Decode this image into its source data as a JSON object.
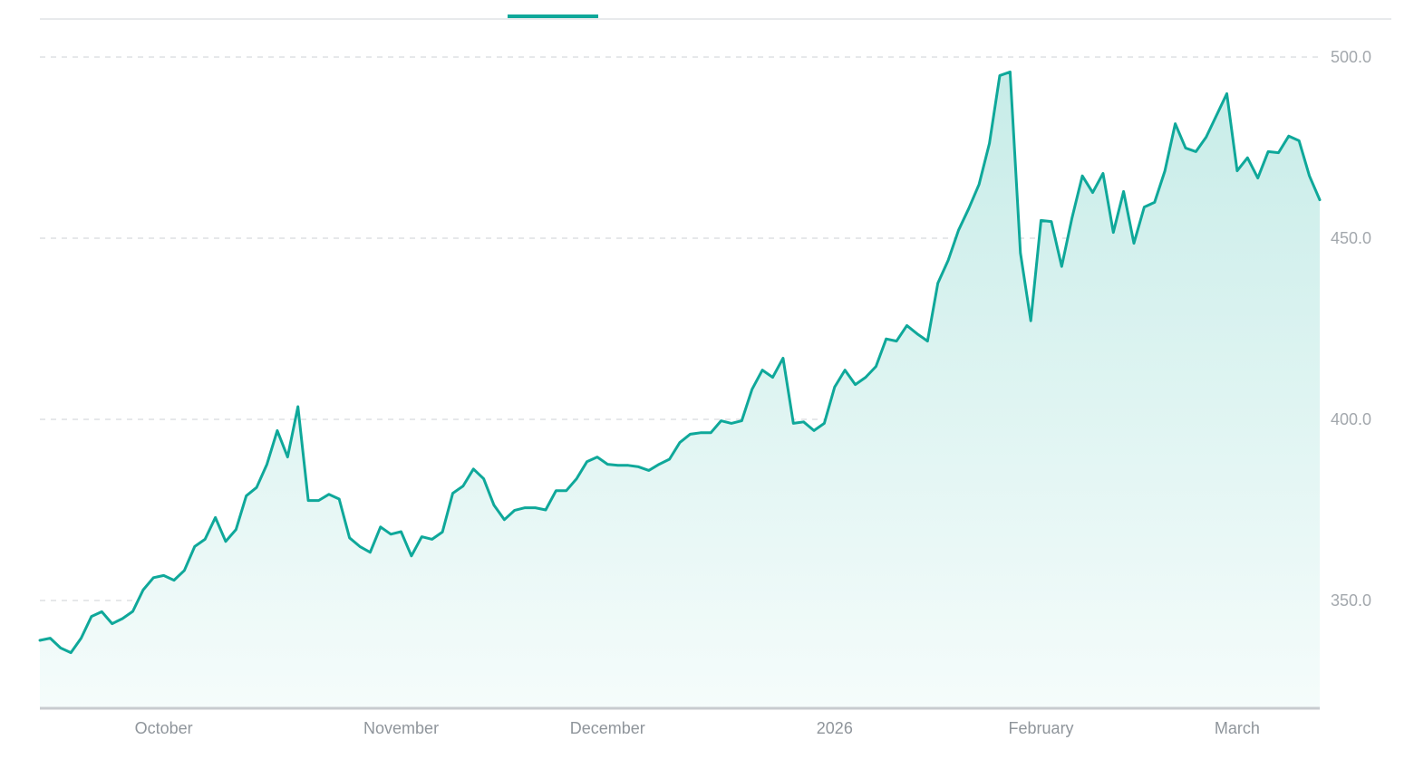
{
  "colors": {
    "line": "#0fa89a",
    "fill_top": "#c7ece8",
    "fill_bottom": "#f5fcfb",
    "grid": "#d6dadd",
    "axis": "#c8cbcf",
    "active_tab_indicator": "#0fa89a"
  },
  "chart_data": {
    "type": "area",
    "title": "",
    "xlabel": "",
    "ylabel": "",
    "ylim": [
      320,
      510
    ],
    "grid": true,
    "y_axis_position": "right",
    "y_ticks": [
      {
        "value": 350,
        "label": "350.0"
      },
      {
        "value": 400,
        "label": "400.0"
      },
      {
        "value": 450,
        "label": "450.0"
      },
      {
        "value": 500,
        "label": "500.0"
      }
    ],
    "x_ticks": [
      {
        "index": 12,
        "label": "October"
      },
      {
        "index": 35,
        "label": "November"
      },
      {
        "index": 55,
        "label": "December"
      },
      {
        "index": 77,
        "label": "2026"
      },
      {
        "index": 97,
        "label": "February"
      },
      {
        "index": 116,
        "label": "March"
      }
    ],
    "series": [
      {
        "values": [
          339.0,
          339.6,
          336.9,
          335.6,
          339.6,
          345.6,
          346.9,
          343.6,
          345.0,
          347.0,
          352.9,
          356.3,
          356.9,
          355.6,
          358.3,
          364.9,
          366.9,
          372.9,
          366.3,
          369.6,
          378.9,
          381.2,
          387.6,
          396.9,
          389.6,
          403.5,
          377.6,
          377.6,
          379.3,
          378.0,
          367.3,
          364.9,
          363.3,
          370.3,
          368.3,
          369.0,
          362.3,
          367.6,
          366.9,
          368.9,
          379.6,
          381.6,
          386.3,
          383.6,
          376.3,
          372.3,
          374.9,
          375.6,
          375.6,
          375.0,
          380.3,
          380.3,
          383.6,
          388.3,
          389.6,
          387.6,
          387.3,
          387.3,
          386.9,
          385.9,
          387.6,
          389.0,
          393.6,
          395.9,
          396.3,
          396.3,
          399.6,
          398.9,
          399.6,
          408.3,
          413.6,
          411.6,
          416.9,
          398.9,
          399.3,
          396.9,
          398.9,
          408.9,
          413.6,
          409.6,
          411.6,
          414.6,
          422.2,
          421.6,
          425.9,
          423.6,
          421.6,
          437.6,
          443.9,
          452.2,
          458.2,
          464.9,
          476.2,
          494.9,
          495.9,
          445.9,
          427.2,
          454.9,
          454.6,
          442.2,
          455.6,
          467.2,
          462.6,
          467.9,
          451.6,
          462.9,
          448.6,
          458.6,
          459.9,
          468.6,
          481.6,
          474.9,
          473.9,
          477.9,
          483.9,
          489.9,
          468.6,
          472.2,
          466.6,
          473.9,
          473.6,
          478.2,
          476.9,
          467.2,
          460.6
        ]
      }
    ]
  }
}
